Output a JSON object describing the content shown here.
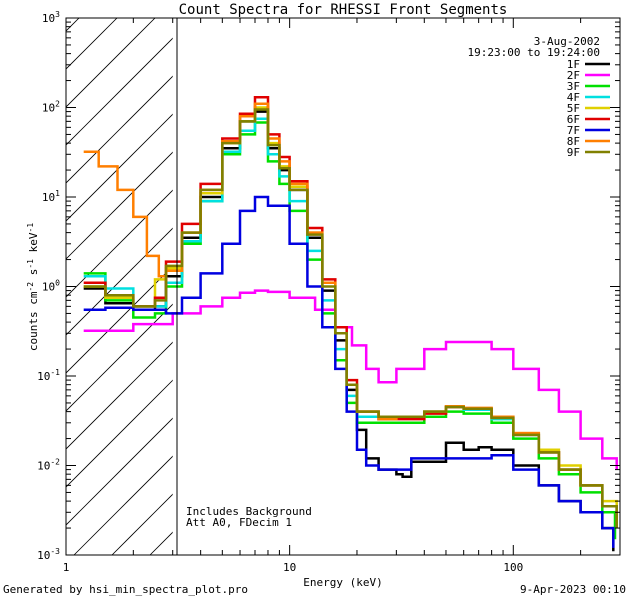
{
  "chart_data": {
    "type": "line",
    "title": "Count Spectra for RHESSI Front Segments",
    "xlabel": "Energy (keV)",
    "ylabel_parts": [
      "counts cm",
      "-2",
      " s",
      "-1",
      " keV",
      "-1"
    ],
    "xscale": "log",
    "yscale": "log",
    "xlim": [
      1,
      300
    ],
    "ylim": [
      0.001,
      1000
    ],
    "x_ticks": [
      {
        "v": 1,
        "label": "1"
      },
      {
        "v": 10,
        "label": "10"
      },
      {
        "v": 100,
        "label": "100"
      }
    ],
    "y_ticks": [
      {
        "v": 0.001,
        "base": "10",
        "exp": "-3"
      },
      {
        "v": 0.01,
        "base": "10",
        "exp": "-2"
      },
      {
        "v": 0.1,
        "base": "10",
        "exp": "-1"
      },
      {
        "v": 1,
        "base": "10",
        "exp": "0"
      },
      {
        "v": 10,
        "base": "10",
        "exp": "1"
      },
      {
        "v": 100,
        "base": "10",
        "exp": "2"
      },
      {
        "v": 1000,
        "base": "10",
        "exp": "3"
      }
    ],
    "hatched_region": [
      1,
      3
    ],
    "date": "3-Aug-2002",
    "time_range": "19:23:00 to 19:24:00",
    "legend_position": "top-right",
    "annotations": [
      "Includes Background",
      "Att A0, FDecim 1"
    ],
    "series": [
      {
        "name": "1F",
        "color": "#000000",
        "points": [
          [
            1.2,
            0.95
          ],
          [
            1.5,
            0.65
          ],
          [
            2,
            0.55
          ],
          [
            2.5,
            0.6
          ],
          [
            2.8,
            1.3
          ],
          [
            3.3,
            3.5
          ],
          [
            4,
            10
          ],
          [
            5,
            35
          ],
          [
            6,
            70
          ],
          [
            7,
            90
          ],
          [
            8,
            35
          ],
          [
            9,
            20
          ],
          [
            10,
            12
          ],
          [
            12,
            3.5
          ],
          [
            14,
            0.9
          ],
          [
            16,
            0.25
          ],
          [
            18,
            0.07
          ],
          [
            20,
            0.025
          ],
          [
            22,
            0.012
          ],
          [
            25,
            0.009
          ],
          [
            30,
            0.008
          ],
          [
            32,
            0.0075
          ],
          [
            35,
            0.011
          ],
          [
            40,
            0.011
          ],
          [
            50,
            0.018
          ],
          [
            60,
            0.015
          ],
          [
            70,
            0.016
          ],
          [
            80,
            0.015
          ],
          [
            100,
            0.01
          ],
          [
            130,
            0.006
          ],
          [
            160,
            0.004
          ],
          [
            200,
            0.003
          ],
          [
            250,
            0.002
          ],
          [
            280,
            0.0011
          ]
        ]
      },
      {
        "name": "2F",
        "color": "#ff00ff",
        "points": [
          [
            1.2,
            0.32
          ],
          [
            2,
            0.38
          ],
          [
            3,
            0.5
          ],
          [
            4,
            0.6
          ],
          [
            5,
            0.75
          ],
          [
            6,
            0.85
          ],
          [
            7,
            0.9
          ],
          [
            8,
            0.87
          ],
          [
            10,
            0.75
          ],
          [
            13,
            0.55
          ],
          [
            16,
            0.35
          ],
          [
            19,
            0.22
          ],
          [
            22,
            0.12
          ],
          [
            25,
            0.085
          ],
          [
            30,
            0.12
          ],
          [
            40,
            0.2
          ],
          [
            50,
            0.24
          ],
          [
            60,
            0.24
          ],
          [
            80,
            0.2
          ],
          [
            100,
            0.12
          ],
          [
            130,
            0.07
          ],
          [
            160,
            0.04
          ],
          [
            200,
            0.02
          ],
          [
            250,
            0.012
          ],
          [
            290,
            0.009
          ]
        ]
      },
      {
        "name": "3F",
        "color": "#00e000",
        "points": [
          [
            1.2,
            1.4
          ],
          [
            1.5,
            0.7
          ],
          [
            2,
            0.45
          ],
          [
            2.5,
            0.5
          ],
          [
            2.8,
            1.0
          ],
          [
            3.3,
            3.0
          ],
          [
            4,
            9
          ],
          [
            5,
            30
          ],
          [
            6,
            50
          ],
          [
            7,
            68
          ],
          [
            8,
            25
          ],
          [
            9,
            14
          ],
          [
            10,
            7
          ],
          [
            12,
            2
          ],
          [
            14,
            0.5
          ],
          [
            16,
            0.15
          ],
          [
            18,
            0.05
          ],
          [
            20,
            0.03
          ],
          [
            25,
            0.03
          ],
          [
            30,
            0.03
          ],
          [
            40,
            0.035
          ],
          [
            50,
            0.04
          ],
          [
            60,
            0.038
          ],
          [
            80,
            0.03
          ],
          [
            100,
            0.02
          ],
          [
            130,
            0.012
          ],
          [
            160,
            0.008
          ],
          [
            200,
            0.005
          ],
          [
            250,
            0.003
          ],
          [
            285,
            0.0015
          ]
        ]
      },
      {
        "name": "4F",
        "color": "#00e0e0",
        "points": [
          [
            1.2,
            1.3
          ],
          [
            1.5,
            0.95
          ],
          [
            2,
            0.6
          ],
          [
            2.5,
            0.6
          ],
          [
            2.8,
            1.1
          ],
          [
            3.3,
            3.2
          ],
          [
            4,
            9
          ],
          [
            5,
            32
          ],
          [
            6,
            55
          ],
          [
            7,
            75
          ],
          [
            8,
            30
          ],
          [
            9,
            17
          ],
          [
            10,
            9
          ],
          [
            12,
            2.5
          ],
          [
            14,
            0.7
          ],
          [
            16,
            0.2
          ],
          [
            18,
            0.06
          ],
          [
            20,
            0.035
          ],
          [
            25,
            0.033
          ],
          [
            30,
            0.035
          ],
          [
            40,
            0.04
          ],
          [
            50,
            0.045
          ],
          [
            60,
            0.042
          ],
          [
            80,
            0.033
          ],
          [
            100,
            0.022
          ],
          [
            130,
            0.014
          ],
          [
            160,
            0.009
          ],
          [
            200,
            0.006
          ],
          [
            250,
            0.0035
          ],
          [
            290,
            0.002
          ]
        ]
      },
      {
        "name": "5F",
        "color": "#e0d000",
        "points": [
          [
            1.2,
            1.0
          ],
          [
            1.5,
            0.75
          ],
          [
            2,
            0.6
          ],
          [
            2.5,
            1.2
          ],
          [
            2.8,
            1.6
          ],
          [
            3.3,
            4
          ],
          [
            4,
            11
          ],
          [
            5,
            40
          ],
          [
            6,
            70
          ],
          [
            7,
            100
          ],
          [
            8,
            40
          ],
          [
            9,
            22
          ],
          [
            10,
            13
          ],
          [
            12,
            4
          ],
          [
            14,
            1.1
          ],
          [
            16,
            0.3
          ],
          [
            18,
            0.08
          ],
          [
            20,
            0.04
          ],
          [
            25,
            0.035
          ],
          [
            30,
            0.035
          ],
          [
            40,
            0.04
          ],
          [
            50,
            0.045
          ],
          [
            60,
            0.043
          ],
          [
            80,
            0.034
          ],
          [
            100,
            0.023
          ],
          [
            130,
            0.015
          ],
          [
            160,
            0.01
          ],
          [
            200,
            0.006
          ],
          [
            250,
            0.004
          ],
          [
            290,
            0.0025
          ]
        ]
      },
      {
        "name": "6F",
        "color": "#e00000",
        "points": [
          [
            1.2,
            1.1
          ],
          [
            1.5,
            0.8
          ],
          [
            2,
            0.6
          ],
          [
            2.5,
            0.75
          ],
          [
            2.8,
            1.9
          ],
          [
            3.3,
            5
          ],
          [
            4,
            14
          ],
          [
            5,
            45
          ],
          [
            6,
            85
          ],
          [
            7,
            130
          ],
          [
            8,
            50
          ],
          [
            9,
            28
          ],
          [
            10,
            15
          ],
          [
            12,
            4.5
          ],
          [
            14,
            1.2
          ],
          [
            16,
            0.35
          ],
          [
            18,
            0.09
          ],
          [
            20,
            0.04
          ],
          [
            25,
            0.033
          ],
          [
            30,
            0.033
          ],
          [
            40,
            0.038
          ],
          [
            50,
            0.045
          ],
          [
            60,
            0.043
          ],
          [
            80,
            0.035
          ],
          [
            100,
            0.022
          ],
          [
            130,
            0.014
          ],
          [
            160,
            0.009
          ],
          [
            200,
            0.006
          ],
          [
            250,
            0.0035
          ],
          [
            290,
            0.002
          ]
        ]
      },
      {
        "name": "7F",
        "color": "#0000e0",
        "points": [
          [
            1.2,
            0.55
          ],
          [
            1.5,
            0.58
          ],
          [
            2,
            0.55
          ],
          [
            2.5,
            0.55
          ],
          [
            2.8,
            0.5
          ],
          [
            3.3,
            0.75
          ],
          [
            4,
            1.4
          ],
          [
            5,
            3
          ],
          [
            6,
            7
          ],
          [
            7,
            10
          ],
          [
            8,
            8
          ],
          [
            10,
            3
          ],
          [
            12,
            1
          ],
          [
            14,
            0.35
          ],
          [
            16,
            0.12
          ],
          [
            18,
            0.04
          ],
          [
            20,
            0.015
          ],
          [
            22,
            0.01
          ],
          [
            25,
            0.009
          ],
          [
            30,
            0.009
          ],
          [
            35,
            0.012
          ],
          [
            40,
            0.012
          ],
          [
            50,
            0.012
          ],
          [
            60,
            0.012
          ],
          [
            80,
            0.013
          ],
          [
            100,
            0.009
          ],
          [
            130,
            0.006
          ],
          [
            160,
            0.004
          ],
          [
            200,
            0.003
          ],
          [
            250,
            0.002
          ],
          [
            280,
            0.0012
          ]
        ]
      },
      {
        "name": "8F",
        "color": "#ff7f00",
        "points": [
          [
            1.2,
            32
          ],
          [
            1.4,
            22
          ],
          [
            1.7,
            12
          ],
          [
            2,
            6
          ],
          [
            2.3,
            2.2
          ],
          [
            2.6,
            1.3
          ],
          [
            2.8,
            1.5
          ],
          [
            3.3,
            4
          ],
          [
            4,
            12
          ],
          [
            5,
            42
          ],
          [
            6,
            80
          ],
          [
            7,
            110
          ],
          [
            8,
            45
          ],
          [
            9,
            25
          ],
          [
            10,
            14
          ],
          [
            12,
            4
          ],
          [
            14,
            1.1
          ],
          [
            16,
            0.3
          ],
          [
            18,
            0.08
          ],
          [
            20,
            0.04
          ],
          [
            25,
            0.033
          ],
          [
            30,
            0.035
          ],
          [
            40,
            0.04
          ],
          [
            50,
            0.046
          ],
          [
            60,
            0.044
          ],
          [
            80,
            0.035
          ],
          [
            100,
            0.023
          ],
          [
            130,
            0.014
          ],
          [
            160,
            0.009
          ],
          [
            200,
            0.006
          ],
          [
            250,
            0.0035
          ],
          [
            290,
            0.002
          ]
        ]
      },
      {
        "name": "9F",
        "color": "#808000",
        "points": [
          [
            1.2,
            1.0
          ],
          [
            1.5,
            0.8
          ],
          [
            2,
            0.6
          ],
          [
            2.5,
            0.7
          ],
          [
            2.8,
            1.7
          ],
          [
            3.3,
            4
          ],
          [
            4,
            12
          ],
          [
            5,
            40
          ],
          [
            6,
            70
          ],
          [
            7,
            95
          ],
          [
            8,
            38
          ],
          [
            9,
            21
          ],
          [
            10,
            12
          ],
          [
            12,
            3.8
          ],
          [
            14,
            1.0
          ],
          [
            16,
            0.3
          ],
          [
            18,
            0.08
          ],
          [
            20,
            0.04
          ],
          [
            25,
            0.035
          ],
          [
            30,
            0.035
          ],
          [
            40,
            0.04
          ],
          [
            50,
            0.045
          ],
          [
            60,
            0.043
          ],
          [
            80,
            0.034
          ],
          [
            100,
            0.022
          ],
          [
            130,
            0.014
          ],
          [
            160,
            0.009
          ],
          [
            200,
            0.006
          ],
          [
            250,
            0.0035
          ],
          [
            290,
            0.002
          ]
        ]
      }
    ]
  },
  "footer": {
    "generated": "Generated by hsi_min_spectra_plot.pro",
    "datetime": "9-Apr-2023 00:10"
  }
}
